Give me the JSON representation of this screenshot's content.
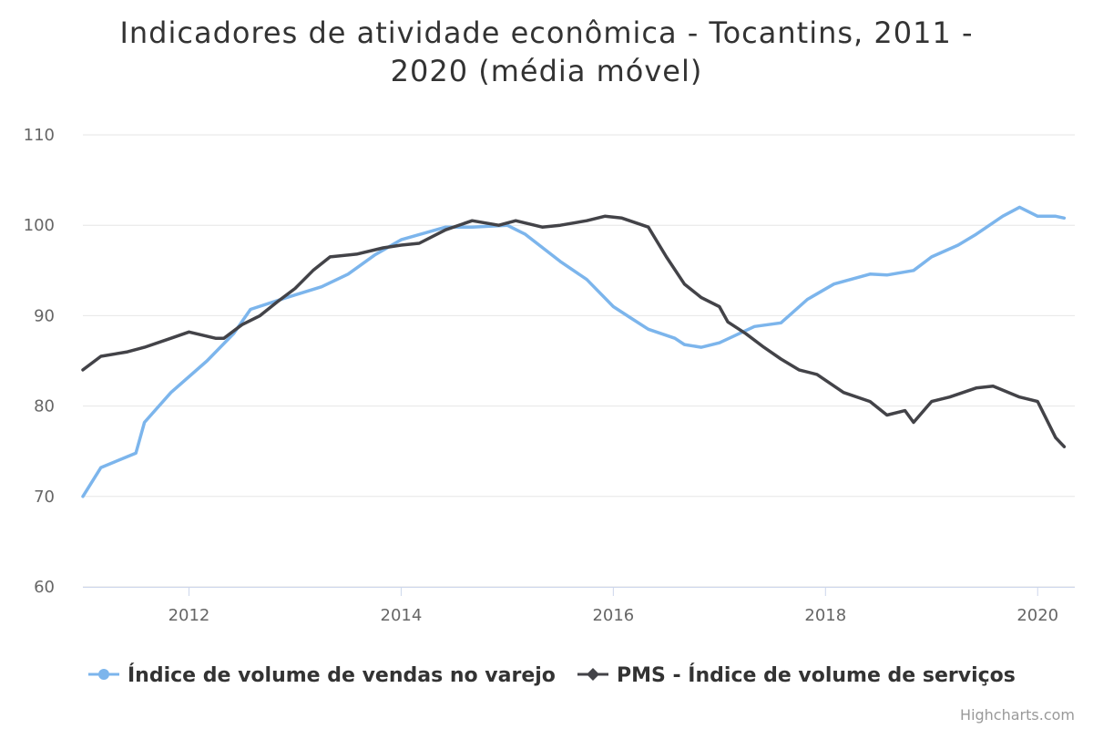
{
  "chart_data": {
    "type": "line",
    "title": "Indicadores de atividade econômica - Tocantins, 2011 -",
    "title_line2": "2020 (média móvel)",
    "xlabel": "",
    "ylabel": "",
    "ylim": [
      60,
      110
    ],
    "yticks": [
      60,
      70,
      80,
      90,
      100,
      110
    ],
    "xlim": [
      2011.0,
      2020.35
    ],
    "xticks": [
      2012,
      2014,
      2016,
      2018,
      2020
    ],
    "xtick_labels": [
      "2012",
      "2014",
      "2016",
      "2018",
      "2020"
    ],
    "grid": true,
    "legend_position": "bottom",
    "credits": "Highcharts.com",
    "series": [
      {
        "name": "Índice de volume de vendas no varejo",
        "color": "#7cb5ec",
        "marker": "circle",
        "x": [
          2011.0,
          2011.17,
          2011.5,
          2011.58,
          2011.83,
          2012.17,
          2012.42,
          2012.58,
          2012.92,
          2013.25,
          2013.5,
          2013.75,
          2014.0,
          2014.42,
          2014.67,
          2015.0,
          2015.17,
          2015.5,
          2015.75,
          2016.0,
          2016.17,
          2016.33,
          2016.58,
          2016.67,
          2016.83,
          2017.0,
          2017.33,
          2017.58,
          2017.83,
          2018.08,
          2018.42,
          2018.58,
          2018.83,
          2019.0,
          2019.25,
          2019.42,
          2019.67,
          2019.83,
          2020.0,
          2020.17,
          2020.25
        ],
        "y": [
          70.0,
          73.2,
          74.8,
          78.2,
          81.5,
          85.0,
          88.0,
          90.7,
          92.0,
          93.2,
          94.6,
          96.7,
          98.4,
          99.8,
          99.8,
          100.0,
          99.0,
          96.0,
          94.0,
          91.0,
          89.7,
          88.5,
          87.5,
          86.8,
          86.5,
          87.0,
          88.8,
          89.2,
          91.8,
          93.5,
          94.6,
          94.5,
          95.0,
          96.5,
          97.8,
          99.0,
          101.0,
          102.0,
          101.0,
          101.0,
          100.8
        ]
      },
      {
        "name": "PMS - Índice de volume de serviços",
        "color": "#434348",
        "marker": "diamond",
        "x": [
          2011.0,
          2011.17,
          2011.42,
          2011.58,
          2011.83,
          2012.0,
          2012.25,
          2012.33,
          2012.5,
          2012.67,
          2012.83,
          2013.0,
          2013.17,
          2013.33,
          2013.58,
          2013.83,
          2014.0,
          2014.17,
          2014.42,
          2014.67,
          2014.92,
          2015.08,
          2015.33,
          2015.5,
          2015.75,
          2015.92,
          2016.08,
          2016.33,
          2016.5,
          2016.67,
          2016.83,
          2017.0,
          2017.08,
          2017.25,
          2017.42,
          2017.58,
          2017.75,
          2017.92,
          2018.17,
          2018.42,
          2018.58,
          2018.75,
          2018.83,
          2019.0,
          2019.17,
          2019.42,
          2019.58,
          2019.83,
          2020.0,
          2020.17,
          2020.25
        ],
        "y": [
          84.0,
          85.5,
          86.0,
          86.5,
          87.5,
          88.2,
          87.5,
          87.5,
          89.0,
          90.0,
          91.5,
          93.0,
          95.0,
          96.5,
          96.8,
          97.5,
          97.8,
          98.0,
          99.5,
          100.5,
          100.0,
          100.5,
          99.8,
          100.0,
          100.5,
          101.0,
          100.8,
          99.8,
          96.5,
          93.5,
          92.0,
          91.0,
          89.3,
          88.0,
          86.5,
          85.2,
          84.0,
          83.5,
          81.5,
          80.5,
          79.0,
          79.5,
          78.2,
          80.5,
          81.0,
          82.0,
          82.2,
          81.0,
          80.5,
          76.5,
          75.5
        ]
      }
    ]
  }
}
